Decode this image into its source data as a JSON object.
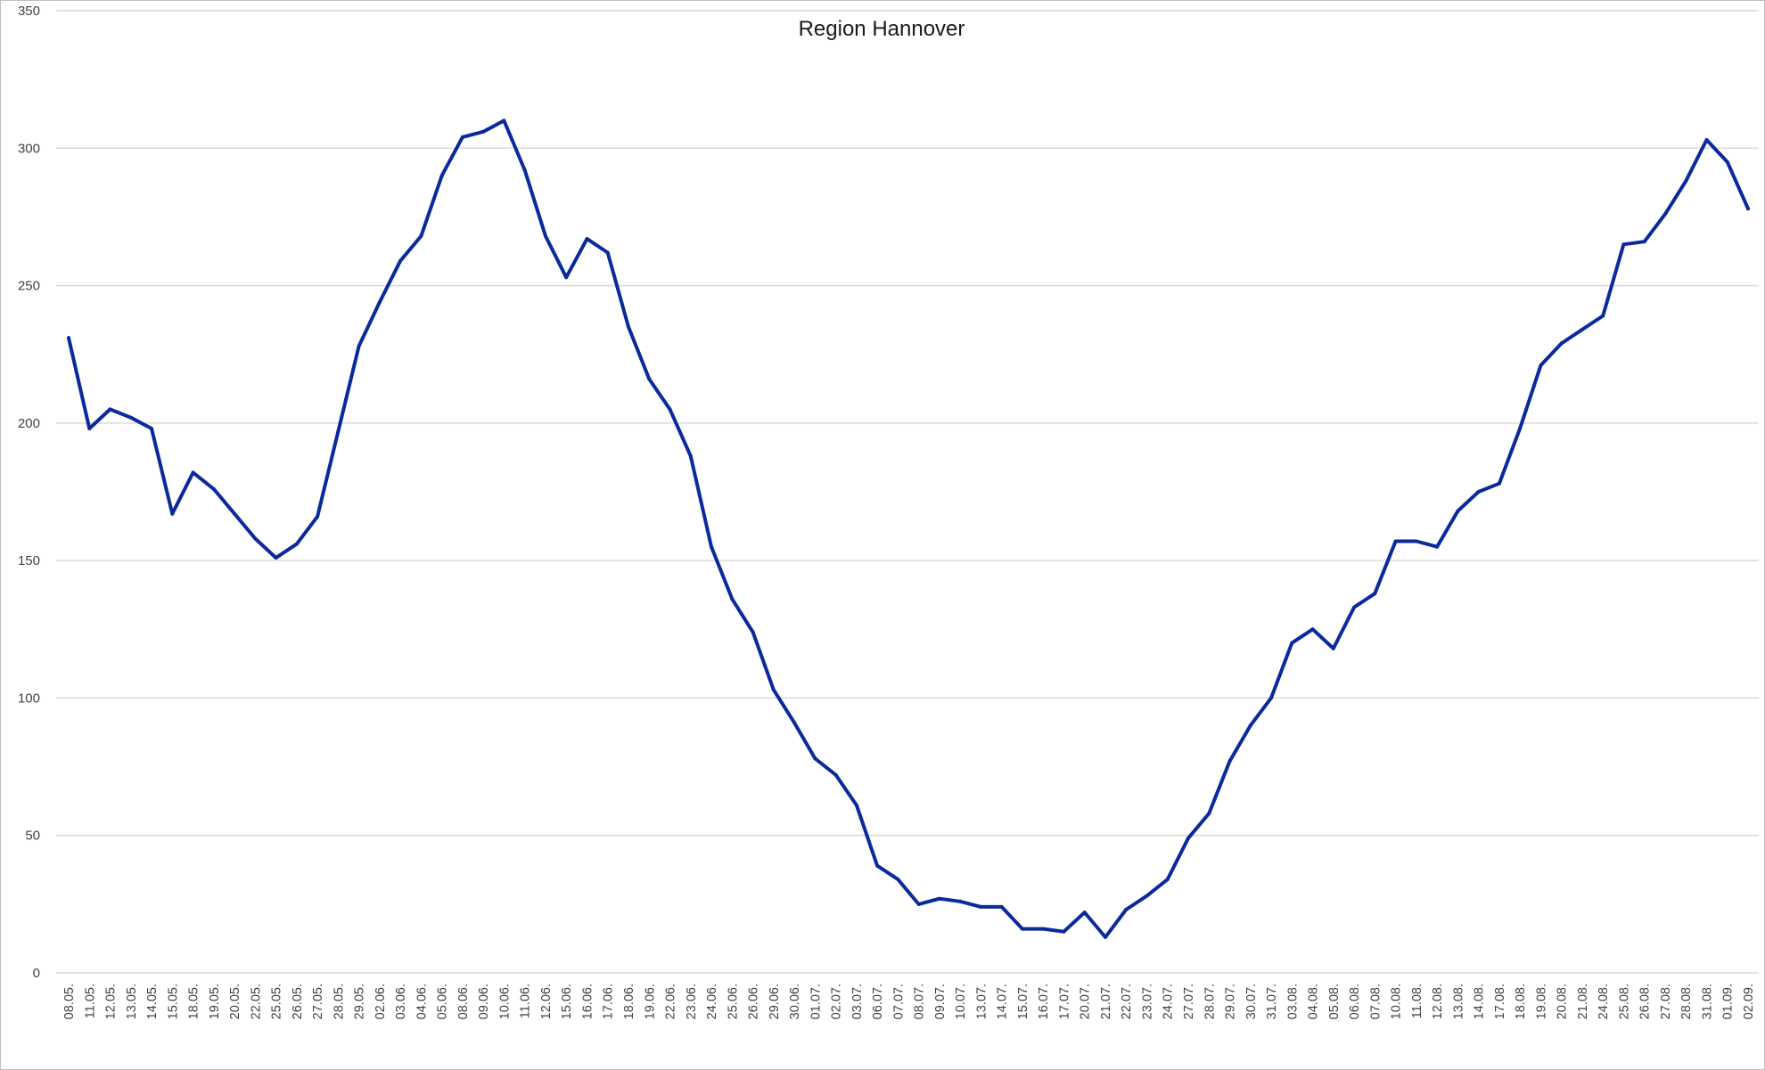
{
  "chart_data": {
    "type": "line",
    "title": "Region Hannover",
    "xlabel": "",
    "ylabel": "",
    "ylim": [
      0,
      350
    ],
    "yticks": [
      0,
      50,
      100,
      150,
      200,
      250,
      300,
      350
    ],
    "grid": true,
    "legend": "none",
    "line_color": "#0a2a9c",
    "categories": [
      "08.05.",
      "11.05.",
      "12.05.",
      "13.05.",
      "14.05.",
      "15.05.",
      "18.05.",
      "19.05.",
      "20.05.",
      "22.05.",
      "25.05.",
      "26.05.",
      "27.05.",
      "28.05.",
      "29.05.",
      "02.06.",
      "03.06.",
      "04.06.",
      "05.06.",
      "08.06.",
      "09.06.",
      "10.06.",
      "11.06.",
      "12.06.",
      "15.06.",
      "16.06.",
      "17.06.",
      "18.06.",
      "19.06.",
      "22.06.",
      "23.06.",
      "24.06.",
      "25.06.",
      "26.06.",
      "29.06.",
      "30.06.",
      "01.07.",
      "02.07.",
      "03.07.",
      "06.07.",
      "07.07.",
      "08.07.",
      "09.07.",
      "10.07.",
      "13.07.",
      "14.07.",
      "15.07.",
      "16.07.",
      "17.07.",
      "20.07.",
      "21.07.",
      "22.07.",
      "23.07.",
      "24.07.",
      "27.07.",
      "28.07.",
      "29.07.",
      "30.07.",
      "31.07.",
      "03.08.",
      "04.08.",
      "05.08.",
      "06.08.",
      "07.08.",
      "10.08.",
      "11.08.",
      "12.08.",
      "13.08.",
      "14.08.",
      "17.08.",
      "18.08.",
      "19.08.",
      "20.08.",
      "21.08.",
      "24.08.",
      "25.08.",
      "26.08.",
      "27.08.",
      "28.08.",
      "31.08.",
      "01.09.",
      "02.09."
    ],
    "values": [
      231,
      198,
      205,
      202,
      198,
      167,
      182,
      176,
      167,
      158,
      151,
      156,
      166,
      197,
      228,
      244,
      259,
      268,
      290,
      304,
      306,
      310,
      292,
      268,
      253,
      267,
      262,
      235,
      216,
      205,
      188,
      155,
      136,
      124,
      103,
      91,
      78,
      72,
      61,
      39,
      34,
      25,
      27,
      26,
      24,
      24,
      16,
      16,
      15,
      22,
      13,
      23,
      28,
      34,
      49,
      58,
      77,
      90,
      100,
      120,
      125,
      118,
      133,
      138,
      157,
      157,
      155,
      168,
      175,
      178,
      198,
      221,
      229,
      234,
      239,
      265,
      266,
      276,
      288,
      303,
      295,
      278
    ]
  }
}
